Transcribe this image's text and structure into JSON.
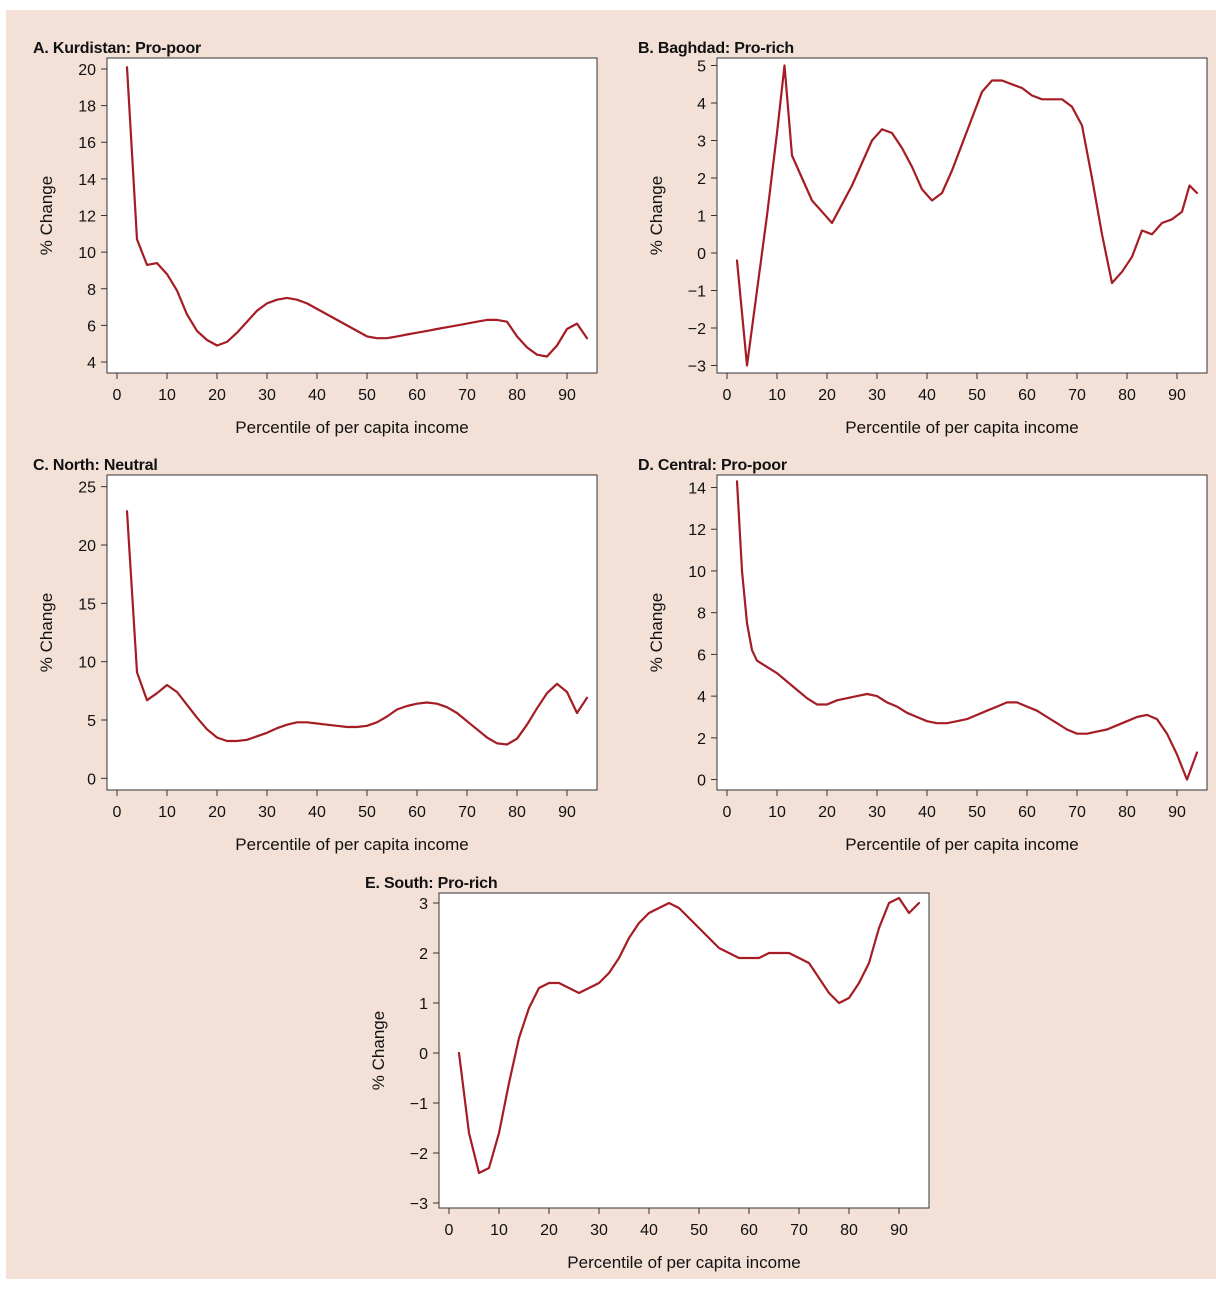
{
  "chart_data": [
    {
      "id": "A",
      "type": "line",
      "title": "A. Kurdistan: Pro-poor",
      "xlabel": "Percentile of per capita income",
      "ylabel": "% Change",
      "xlim": [
        -2,
        96
      ],
      "ylim": [
        3.4,
        20.6
      ],
      "xticks": [
        0,
        10,
        20,
        30,
        40,
        50,
        60,
        70,
        80,
        90
      ],
      "yticks": [
        4,
        6,
        8,
        10,
        12,
        14,
        16,
        18,
        20
      ],
      "ytick_labels": [
        "4",
        "6",
        "8",
        "10",
        "12",
        "14",
        "16",
        "18",
        "20"
      ],
      "color": "#a51c24",
      "x": [
        2,
        4,
        6,
        8,
        10,
        12,
        14,
        16,
        18,
        20,
        22,
        24,
        26,
        28,
        30,
        32,
        34,
        36,
        38,
        40,
        42,
        44,
        46,
        48,
        50,
        52,
        54,
        56,
        58,
        60,
        62,
        64,
        66,
        68,
        70,
        72,
        74,
        76,
        78,
        80,
        82,
        84,
        86,
        88,
        90,
        92,
        94
      ],
      "y": [
        20.1,
        10.7,
        9.3,
        9.4,
        8.8,
        7.9,
        6.6,
        5.7,
        5.2,
        4.9,
        5.1,
        5.6,
        6.2,
        6.8,
        7.2,
        7.4,
        7.5,
        7.4,
        7.2,
        6.9,
        6.6,
        6.3,
        6.0,
        5.7,
        5.4,
        5.3,
        5.3,
        5.4,
        5.5,
        5.6,
        5.7,
        5.8,
        5.9,
        6.0,
        6.1,
        6.2,
        6.3,
        6.3,
        6.2,
        5.4,
        4.8,
        4.4,
        4.3,
        4.9,
        5.8,
        6.1,
        5.3
      ]
    },
    {
      "id": "B",
      "type": "line",
      "title": "B. Baghdad: Pro-rich",
      "xlabel": "Percentile of per capita income",
      "ylabel": "% Change",
      "xlim": [
        -2,
        96
      ],
      "ylim": [
        -3.2,
        5.2
      ],
      "xticks": [
        0,
        10,
        20,
        30,
        40,
        50,
        60,
        70,
        80,
        90
      ],
      "yticks": [
        -3,
        -2,
        -1,
        0,
        1,
        2,
        3,
        4,
        5
      ],
      "ytick_labels": [
        "−3",
        "−2",
        "−1",
        "0",
        "1",
        "2",
        "3",
        "4",
        "5"
      ],
      "color": "#a51c24",
      "x": [
        2,
        4,
        6,
        8,
        10,
        11.5,
        13,
        15,
        17,
        19,
        21,
        23,
        25,
        27,
        29,
        31,
        33,
        35,
        37,
        39,
        41,
        43,
        45,
        47,
        49,
        51,
        53,
        55,
        57,
        59,
        61,
        63,
        65,
        67,
        69,
        71,
        73,
        75,
        77,
        79,
        81,
        83,
        85,
        87,
        89,
        91,
        92.5,
        94
      ],
      "y": [
        -0.2,
        -3.0,
        -1.0,
        1.0,
        3.2,
        5.0,
        2.6,
        2.0,
        1.4,
        1.1,
        0.8,
        1.3,
        1.8,
        2.4,
        3.0,
        3.3,
        3.2,
        2.8,
        2.3,
        1.7,
        1.4,
        1.6,
        2.2,
        2.9,
        3.6,
        4.3,
        4.6,
        4.6,
        4.5,
        4.4,
        4.2,
        4.1,
        4.1,
        4.1,
        3.9,
        3.4,
        2.0,
        0.5,
        -0.8,
        -0.5,
        -0.1,
        0.6,
        0.5,
        0.8,
        0.9,
        1.1,
        1.8,
        1.6
      ]
    },
    {
      "id": "C",
      "type": "line",
      "title": "C. North: Neutral",
      "xlabel": "Percentile of per capita income",
      "ylabel": "% Change",
      "xlim": [
        -2,
        96
      ],
      "ylim": [
        -1,
        26
      ],
      "xticks": [
        0,
        10,
        20,
        30,
        40,
        50,
        60,
        70,
        80,
        90
      ],
      "yticks": [
        0,
        5,
        10,
        15,
        20,
        25
      ],
      "ytick_labels": [
        "0",
        "5",
        "10",
        "15",
        "20",
        "25"
      ],
      "color": "#a51c24",
      "x": [
        2,
        4,
        6,
        8,
        10,
        12,
        14,
        16,
        18,
        20,
        22,
        24,
        26,
        28,
        30,
        32,
        34,
        36,
        38,
        40,
        42,
        44,
        46,
        48,
        50,
        52,
        54,
        56,
        58,
        60,
        62,
        64,
        66,
        68,
        70,
        72,
        74,
        76,
        78,
        80,
        82,
        84,
        86,
        88,
        90,
        92,
        94
      ],
      "y": [
        22.9,
        9.1,
        6.7,
        7.3,
        8.0,
        7.4,
        6.3,
        5.2,
        4.2,
        3.5,
        3.2,
        3.2,
        3.3,
        3.6,
        3.9,
        4.3,
        4.6,
        4.8,
        4.8,
        4.7,
        4.6,
        4.5,
        4.4,
        4.4,
        4.5,
        4.8,
        5.3,
        5.9,
        6.2,
        6.4,
        6.5,
        6.4,
        6.1,
        5.6,
        4.9,
        4.2,
        3.5,
        3.0,
        2.9,
        3.4,
        4.6,
        6.0,
        7.3,
        8.1,
        7.4,
        5.6,
        6.9
      ]
    },
    {
      "id": "D",
      "type": "line",
      "title": "D. Central: Pro-poor",
      "xlabel": "Percentile of per capita income",
      "ylabel": "% Change",
      "xlim": [
        -2,
        96
      ],
      "ylim": [
        -0.5,
        14.6
      ],
      "xticks": [
        0,
        10,
        20,
        30,
        40,
        50,
        60,
        70,
        80,
        90
      ],
      "yticks": [
        0,
        2,
        4,
        6,
        8,
        10,
        12,
        14
      ],
      "ytick_labels": [
        "0",
        "2",
        "4",
        "6",
        "8",
        "10",
        "12",
        "14"
      ],
      "color": "#a51c24",
      "x": [
        2,
        3,
        4,
        5,
        6,
        8,
        10,
        12,
        14,
        16,
        18,
        20,
        22,
        24,
        26,
        28,
        30,
        32,
        34,
        36,
        38,
        40,
        42,
        44,
        46,
        48,
        50,
        52,
        54,
        56,
        58,
        60,
        62,
        64,
        66,
        68,
        70,
        72,
        74,
        76,
        78,
        80,
        82,
        84,
        86,
        88,
        90,
        92,
        94
      ],
      "y": [
        14.3,
        10.0,
        7.5,
        6.2,
        5.7,
        5.4,
        5.1,
        4.7,
        4.3,
        3.9,
        3.6,
        3.6,
        3.8,
        3.9,
        4.0,
        4.1,
        4.0,
        3.7,
        3.5,
        3.2,
        3.0,
        2.8,
        2.7,
        2.7,
        2.8,
        2.9,
        3.1,
        3.3,
        3.5,
        3.7,
        3.7,
        3.5,
        3.3,
        3.0,
        2.7,
        2.4,
        2.2,
        2.2,
        2.3,
        2.4,
        2.6,
        2.8,
        3.0,
        3.1,
        2.9,
        2.2,
        1.2,
        0.0,
        1.3
      ]
    },
    {
      "id": "E",
      "type": "line",
      "title": "E. South: Pro-rich",
      "xlabel": "Percentile of per capita income",
      "ylabel": "% Change",
      "xlim": [
        -2,
        96
      ],
      "ylim": [
        -3.1,
        3.2
      ],
      "xticks": [
        0,
        10,
        20,
        30,
        40,
        50,
        60,
        70,
        80,
        90
      ],
      "yticks": [
        -3,
        -2,
        -1,
        0,
        1,
        2,
        3
      ],
      "ytick_labels": [
        "−3",
        "−2",
        "−1",
        "0",
        "1",
        "2",
        "3"
      ],
      "color": "#a51c24",
      "x": [
        2,
        4,
        6,
        8,
        10,
        12,
        14,
        16,
        18,
        20,
        22,
        24,
        26,
        28,
        30,
        32,
        34,
        36,
        38,
        40,
        42,
        44,
        46,
        48,
        50,
        52,
        54,
        56,
        58,
        60,
        62,
        64,
        66,
        68,
        70,
        72,
        74,
        76,
        78,
        80,
        82,
        84,
        86,
        88,
        90,
        92,
        94
      ],
      "y": [
        0.0,
        -1.6,
        -2.4,
        -2.3,
        -1.6,
        -0.6,
        0.3,
        0.9,
        1.3,
        1.4,
        1.4,
        1.3,
        1.2,
        1.3,
        1.4,
        1.6,
        1.9,
        2.3,
        2.6,
        2.8,
        2.9,
        3.0,
        2.9,
        2.7,
        2.5,
        2.3,
        2.1,
        2.0,
        1.9,
        1.9,
        1.9,
        2.0,
        2.0,
        2.0,
        1.9,
        1.8,
        1.5,
        1.2,
        1.0,
        1.1,
        1.4,
        1.8,
        2.5,
        3.0,
        3.1,
        2.8,
        3.0
      ]
    }
  ]
}
